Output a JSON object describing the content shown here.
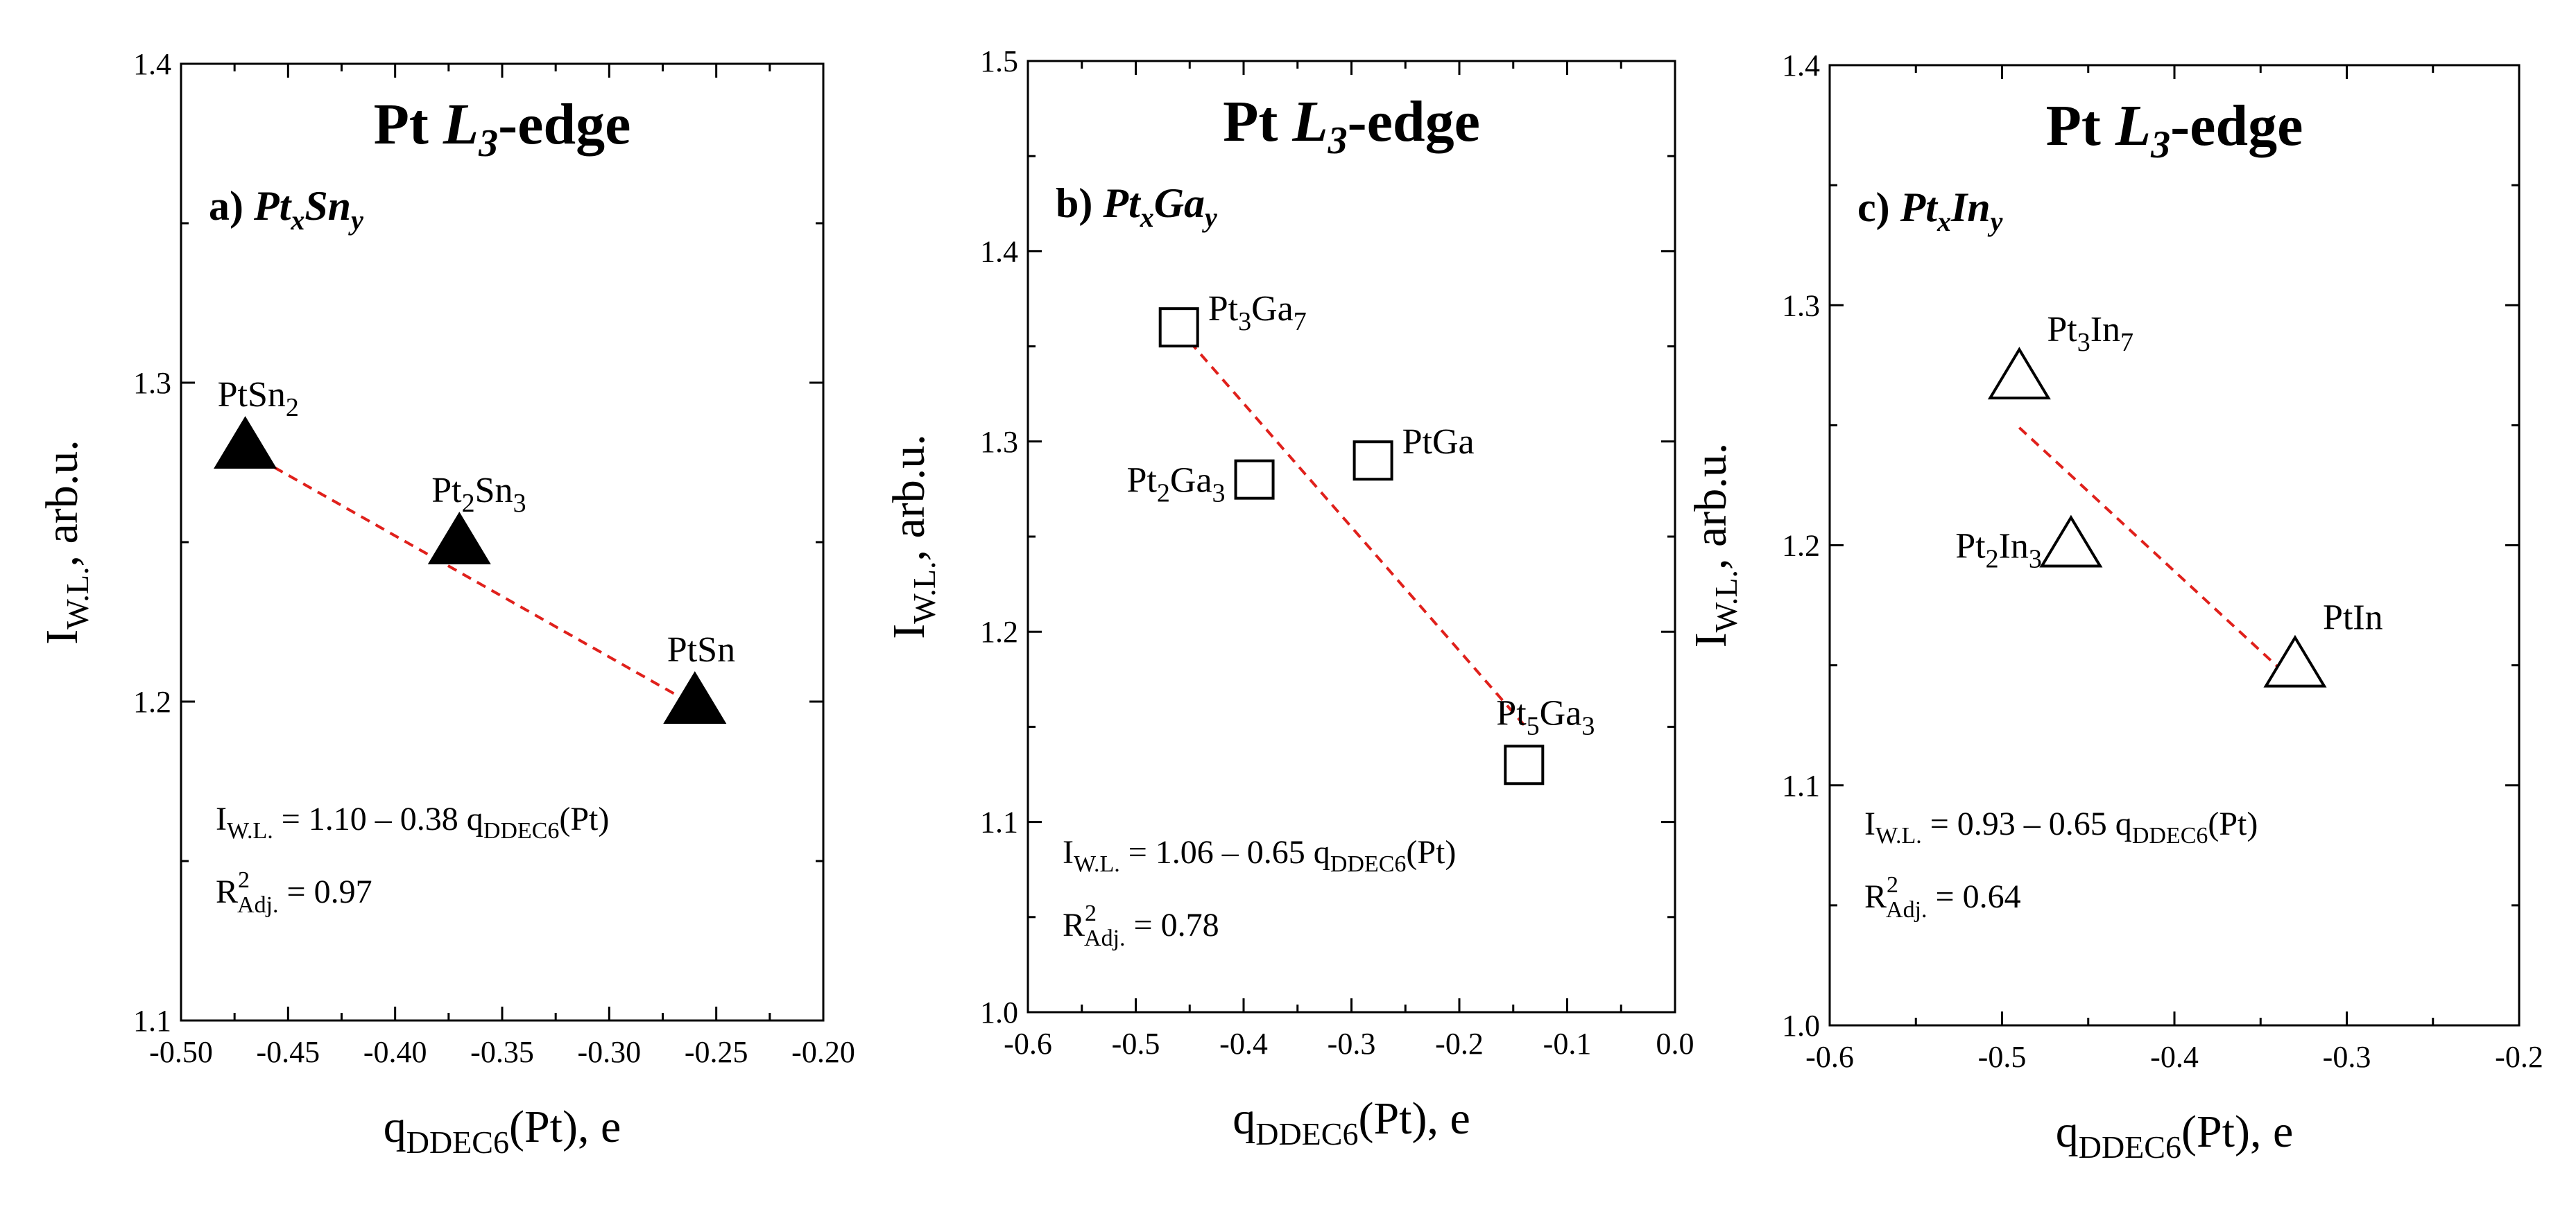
{
  "chart_data": [
    {
      "type": "scatter",
      "title_pre": "Pt ",
      "title_L": "L",
      "title_sub": "3",
      "title_post": "-edge",
      "panel": {
        "prefix": "a)",
        "el1": "Pt",
        "sub1": "x",
        "el2": "Sn",
        "sub2": "y"
      },
      "ylabel": {
        "main": "I",
        "sub": "W.L.",
        "post": ", arb.u."
      },
      "xlabel": {
        "main": "q",
        "sub": "DDEC6",
        "post": "(Pt), e"
      },
      "xlim": [
        -0.5,
        -0.2
      ],
      "ylim": [
        1.1,
        1.4
      ],
      "xticks": [
        -0.5,
        -0.45,
        -0.4,
        -0.35,
        -0.3,
        -0.25,
        -0.2
      ],
      "xtick_labels": [
        "-0.50",
        "-0.45",
        "-0.40",
        "-0.35",
        "-0.30",
        "-0.25",
        "-0.20"
      ],
      "yticks": [
        1.1,
        1.2,
        1.3,
        1.4
      ],
      "ytick_labels": [
        "1.1",
        "1.2",
        "1.3",
        "1.4"
      ],
      "marker": "filled-triangle",
      "points": [
        {
          "x": -0.47,
          "y": 1.28,
          "label": {
            "t1": "PtSn",
            "s1": "2",
            "t2": "",
            "s2": ""
          },
          "label_pos": "above"
        },
        {
          "x": -0.37,
          "y": 1.25,
          "label": {
            "t1": "Pt",
            "s1": "2",
            "t2": "Sn",
            "s2": "3"
          },
          "label_pos": "above"
        },
        {
          "x": -0.26,
          "y": 1.2,
          "label": {
            "t1": "PtSn",
            "s1": "",
            "t2": "",
            "s2": ""
          },
          "label_pos": "above"
        }
      ],
      "fit": {
        "x": [
          -0.47,
          -0.26
        ],
        "y": [
          1.2786,
          1.1988
        ],
        "color": "#e0201b"
      },
      "equation": {
        "lhs": "I",
        "lhs_sub": "W.L.",
        "rhs": " = 1.10 – 0.38 q",
        "q_sub": "DDEC6",
        "tail": "(Pt)"
      },
      "r2": {
        "R": "R",
        "sup": "2",
        "sub": "Adj.",
        "value": " = 0.97"
      }
    },
    {
      "type": "scatter",
      "title_pre": "Pt ",
      "title_L": "L",
      "title_sub": "3",
      "title_post": "-edge",
      "panel": {
        "prefix": "b)",
        "el1": "Pt",
        "sub1": "x",
        "el2": "Ga",
        "sub2": "y"
      },
      "ylabel": {
        "main": "I",
        "sub": "W.L.",
        "post": ", arb.u."
      },
      "xlabel": {
        "main": "q",
        "sub": "DDEC6",
        "post": "(Pt), e"
      },
      "xlim": [
        -0.6,
        0.0
      ],
      "ylim": [
        1.0,
        1.5
      ],
      "xticks": [
        -0.6,
        -0.5,
        -0.4,
        -0.3,
        -0.2,
        -0.1,
        0.0
      ],
      "xtick_labels": [
        "-0.6",
        "-0.5",
        "-0.4",
        "-0.3",
        "-0.2",
        "-0.1",
        "0.0"
      ],
      "yticks": [
        1.0,
        1.1,
        1.2,
        1.3,
        1.4,
        1.5
      ],
      "ytick_labels": [
        "1.0",
        "1.1",
        "1.2",
        "1.3",
        "1.4",
        "1.5"
      ],
      "marker": "open-square",
      "points": [
        {
          "x": -0.46,
          "y": 1.36,
          "label": {
            "t1": "Pt",
            "s1": "3",
            "t2": "Ga",
            "s2": "7"
          },
          "label_pos": "right"
        },
        {
          "x": -0.39,
          "y": 1.28,
          "label": {
            "t1": "Pt",
            "s1": "2",
            "t2": "Ga",
            "s2": "3"
          },
          "label_pos": "left"
        },
        {
          "x": -0.28,
          "y": 1.29,
          "label": {
            "t1": "PtGa",
            "s1": "",
            "t2": "",
            "s2": ""
          },
          "label_pos": "right"
        },
        {
          "x": -0.14,
          "y": 1.13,
          "label": {
            "t1": "Pt",
            "s1": "5",
            "t2": "Ga",
            "s2": "3"
          },
          "label_pos": "above"
        }
      ],
      "fit": {
        "x": [
          -0.46,
          -0.14
        ],
        "y": [
          1.359,
          1.151
        ],
        "color": "#e0201b"
      },
      "equation": {
        "lhs": "I",
        "lhs_sub": "W.L.",
        "rhs": " = 1.06 – 0.65 q",
        "q_sub": "DDEC6",
        "tail": "(Pt)"
      },
      "r2": {
        "R": "R",
        "sup": "2",
        "sub": "Adj.",
        "value": " = 0.78"
      }
    },
    {
      "type": "scatter",
      "title_pre": "Pt ",
      "title_L": "L",
      "title_sub": "3",
      "title_post": "-edge",
      "panel": {
        "prefix": "c)",
        "el1": "Pt",
        "sub1": "x",
        "el2": "In",
        "sub2": "y"
      },
      "ylabel": {
        "main": "I",
        "sub": "W.L.",
        "post": ", arb.u."
      },
      "xlabel": {
        "main": "q",
        "sub": "DDEC6",
        "post": "(Pt), e"
      },
      "xlim": [
        -0.6,
        -0.2
      ],
      "ylim": [
        1.0,
        1.4
      ],
      "xticks": [
        -0.6,
        -0.5,
        -0.4,
        -0.3,
        -0.2
      ],
      "xtick_labels": [
        "-0.6",
        "-0.5",
        "-0.4",
        "-0.3",
        "-0.2"
      ],
      "yticks": [
        1.0,
        1.1,
        1.2,
        1.3,
        1.4
      ],
      "ytick_labels": [
        "1.0",
        "1.1",
        "1.2",
        "1.3",
        "1.4"
      ],
      "marker": "open-triangle",
      "points": [
        {
          "x": -0.49,
          "y": 1.27,
          "label": {
            "t1": "Pt",
            "s1": "3",
            "t2": "In",
            "s2": "7"
          },
          "label_pos": "above-right"
        },
        {
          "x": -0.46,
          "y": 1.2,
          "label": {
            "t1": "Pt",
            "s1": "2",
            "t2": "In",
            "s2": "3"
          },
          "label_pos": "left"
        },
        {
          "x": -0.33,
          "y": 1.15,
          "label": {
            "t1": "PtIn",
            "s1": "",
            "t2": "",
            "s2": ""
          },
          "label_pos": "above-right"
        }
      ],
      "fit": {
        "x": [
          -0.49,
          -0.335
        ],
        "y": [
          1.249,
          1.146
        ],
        "color": "#e0201b"
      },
      "equation": {
        "lhs": "I",
        "lhs_sub": "W.L.",
        "rhs": " = 0.93 – 0.65 q",
        "q_sub": "DDEC6",
        "tail": "(Pt)"
      },
      "r2": {
        "R": "R",
        "sup": "2",
        "sub": "Adj.",
        "value": " = 0.64"
      }
    }
  ]
}
